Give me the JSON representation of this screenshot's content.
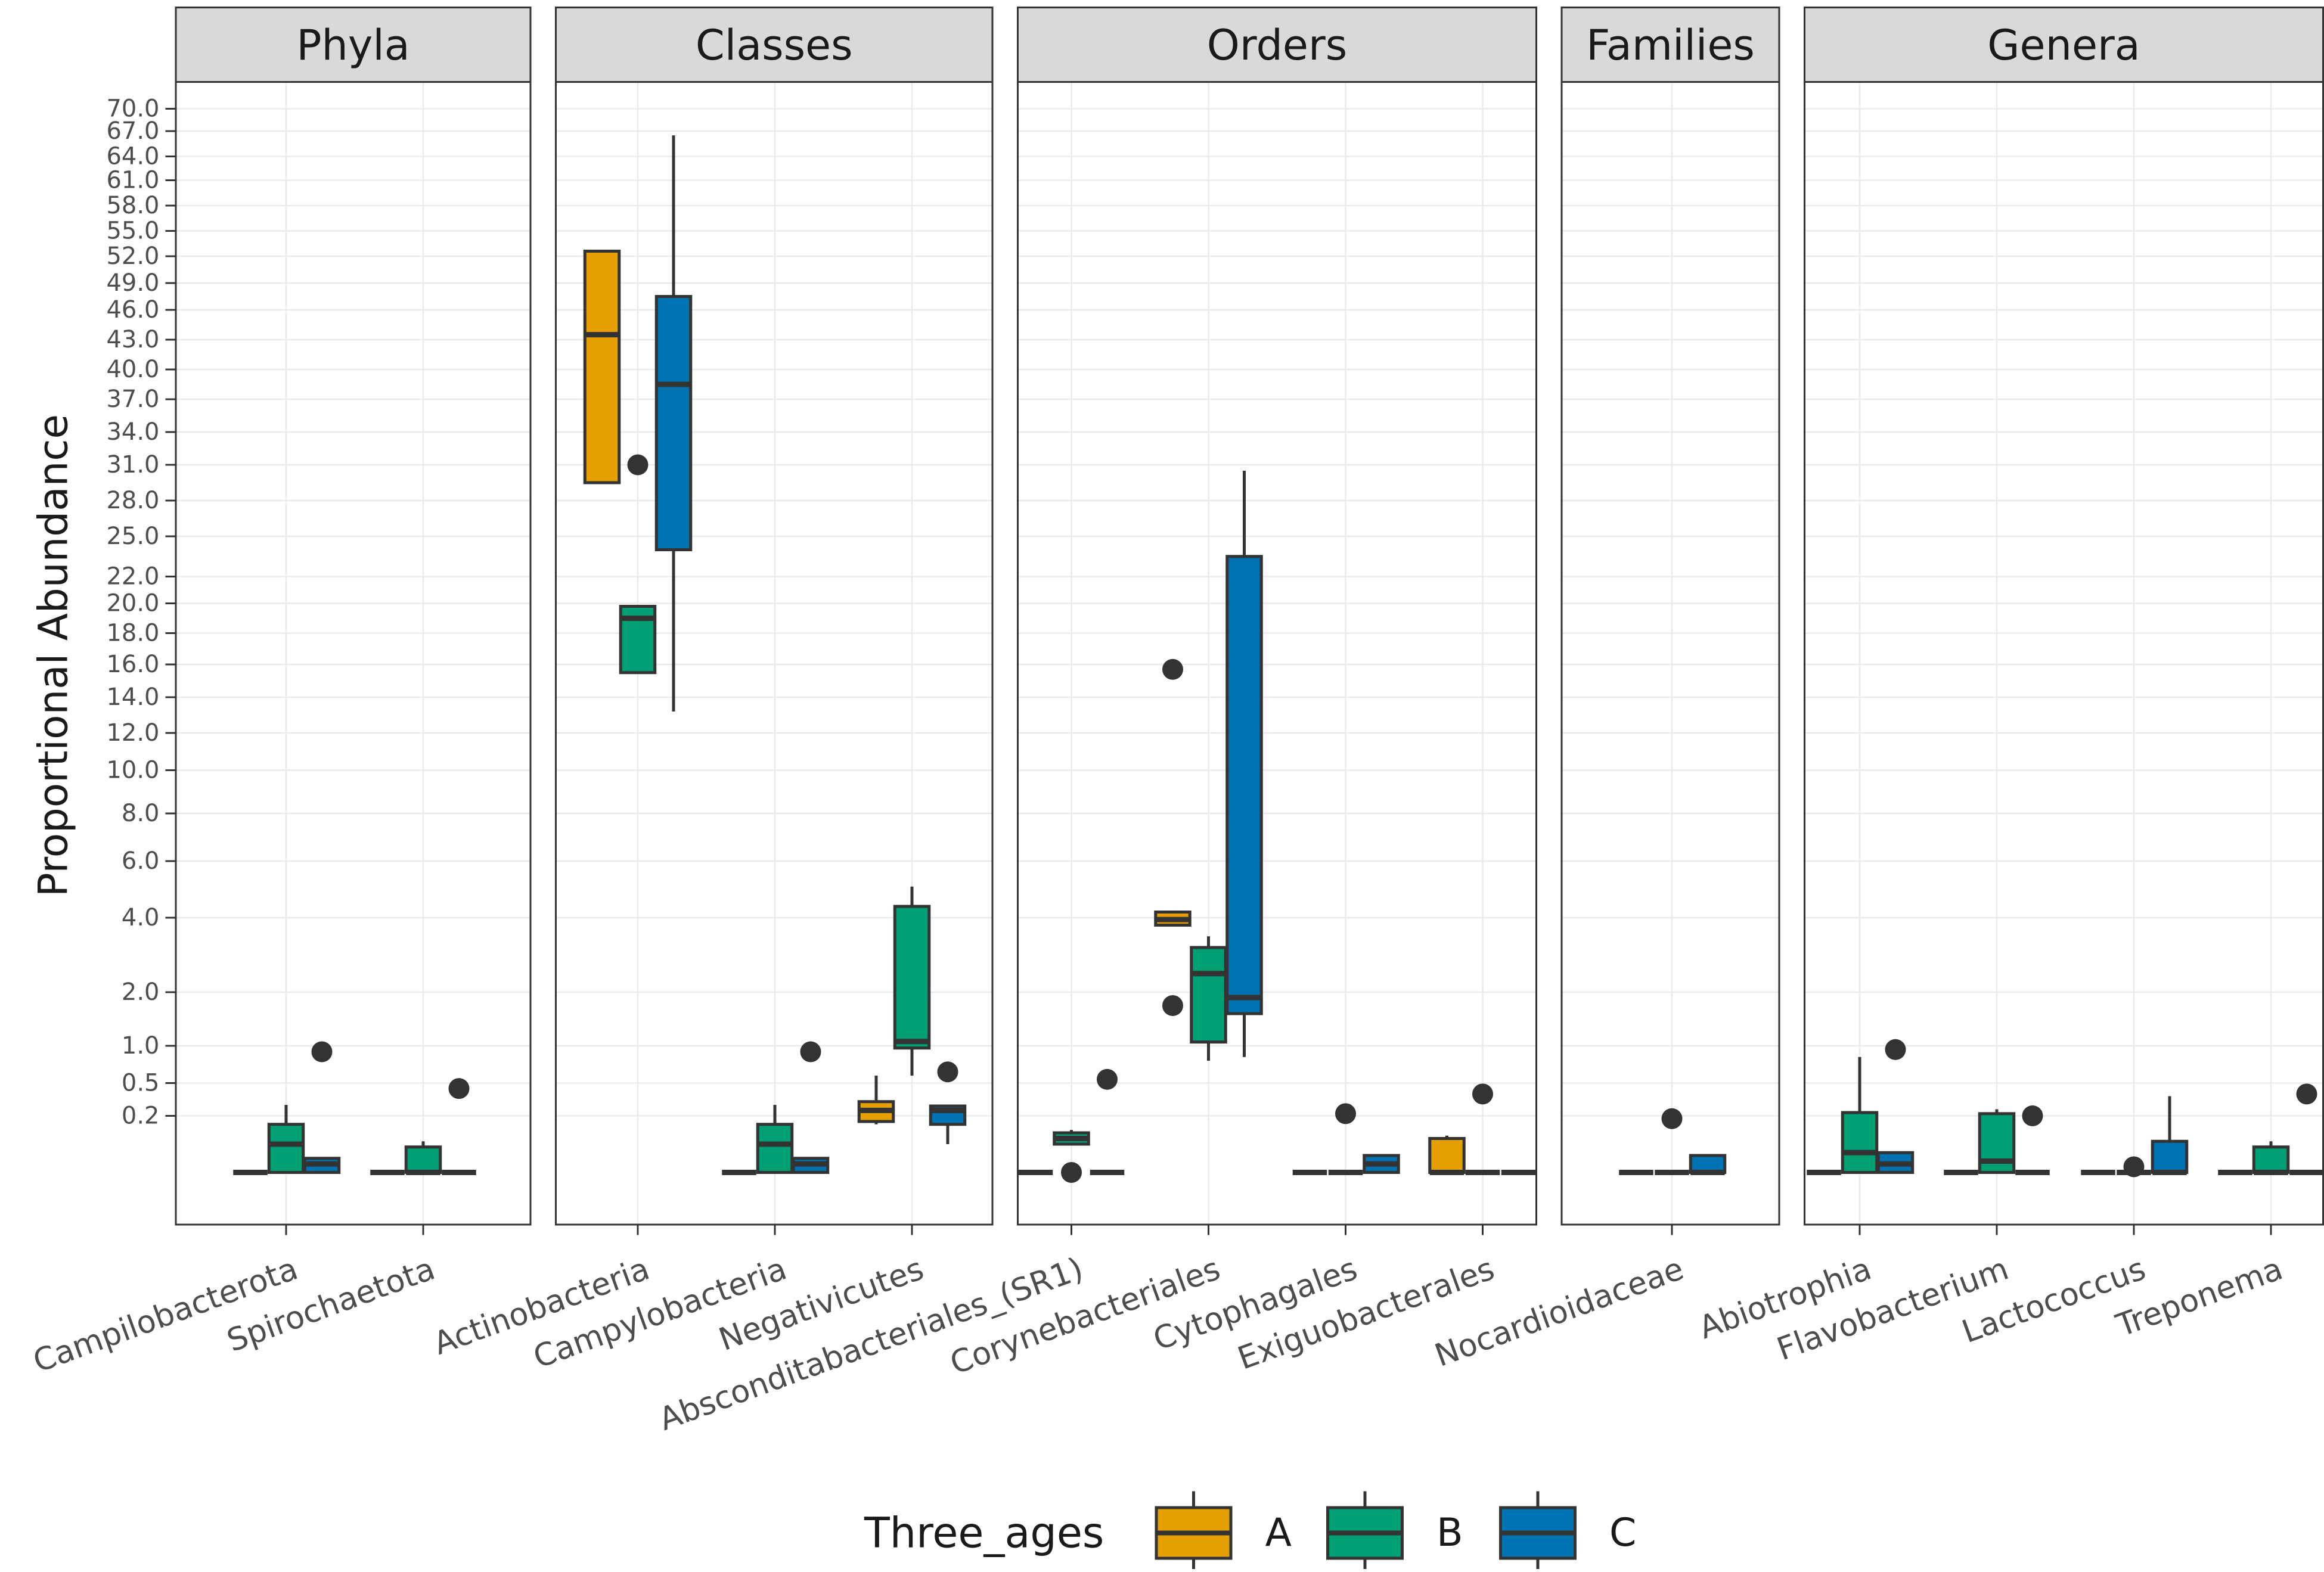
{
  "chart_data": {
    "type": "boxplot",
    "ylabel": "Proportional Abundance",
    "y_ticks": [
      "70.0",
      "67.0",
      "64.0",
      "61.0",
      "58.0",
      "55.0",
      "52.0",
      "49.0",
      "46.0",
      "43.0",
      "40.0",
      "37.0",
      "34.0",
      "31.0",
      "28.0",
      "25.0",
      "22.0",
      "20.0",
      "18.0",
      "16.0",
      "14.0",
      "12.0",
      "10.0",
      "8.0",
      "6.0",
      "4.0",
      "2.0",
      "1.0",
      "0.5",
      "0.2"
    ],
    "legend": {
      "title": "Three_ages",
      "position": "bottom",
      "entries": [
        {
          "label": "A",
          "color": "#E69F00"
        },
        {
          "label": "B",
          "color": "#009E73"
        },
        {
          "label": "C",
          "color": "#0072B2"
        }
      ]
    },
    "panels": [
      {
        "strip": "Phyla",
        "categories": [
          {
            "name": "Campilobacterota",
            "boxes": [
              {
                "group": "A",
                "min": 0,
                "q1": 0,
                "median": 0,
                "q3": 0,
                "max": 0,
                "outliers": []
              },
              {
                "group": "B",
                "min": 0,
                "q1": 0,
                "median": 0.1,
                "q3": 0.17,
                "max": 0.3,
                "outliers": []
              },
              {
                "group": "C",
                "min": 0,
                "q1": 0,
                "median": 0.03,
                "q3": 0.05,
                "max": 0.05,
                "outliers": [
                  0.92
                ]
              }
            ]
          },
          {
            "name": "Spirochaetota",
            "boxes": [
              {
                "group": "A",
                "min": 0,
                "q1": 0,
                "median": 0,
                "q3": 0,
                "max": 0,
                "outliers": []
              },
              {
                "group": "B",
                "min": 0,
                "q1": 0,
                "median": 0,
                "q3": 0.09,
                "max": 0.11,
                "outliers": []
              },
              {
                "group": "C",
                "min": 0,
                "q1": 0,
                "median": 0,
                "q3": 0,
                "max": 0,
                "outliers": [
                  0.45
                ]
              }
            ]
          }
        ]
      },
      {
        "strip": "Classes",
        "categories": [
          {
            "name": "Actinobacteria",
            "boxes": [
              {
                "group": "A",
                "min": 29.5,
                "q1": 29.5,
                "median": 43.5,
                "q3": 52.6,
                "max": 52.6,
                "outliers": []
              },
              {
                "group": "B",
                "min": 15.5,
                "q1": 15.5,
                "median": 19.0,
                "q3": 19.8,
                "max": 19.8,
                "outliers": [
                  31.0
                ]
              },
              {
                "group": "C",
                "min": 13.2,
                "q1": 24.0,
                "median": 38.5,
                "q3": 47.5,
                "max": 66.5,
                "outliers": []
              }
            ]
          },
          {
            "name": "Campylobacteria",
            "boxes": [
              {
                "group": "A",
                "min": 0,
                "q1": 0,
                "median": 0,
                "q3": 0,
                "max": 0,
                "outliers": []
              },
              {
                "group": "B",
                "min": 0,
                "q1": 0,
                "median": 0.1,
                "q3": 0.17,
                "max": 0.3,
                "outliers": []
              },
              {
                "group": "C",
                "min": 0,
                "q1": 0,
                "median": 0.03,
                "q3": 0.05,
                "max": 0.05,
                "outliers": [
                  0.92
                ]
              }
            ]
          },
          {
            "name": "Negativicutes",
            "boxes": [
              {
                "group": "A",
                "min": 0.17,
                "q1": 0.18,
                "median": 0.25,
                "q3": 0.33,
                "max": 0.6,
                "outliers": []
              },
              {
                "group": "B",
                "min": 0.6,
                "q1": 0.97,
                "median": 1.08,
                "q3": 4.4,
                "max": 5.1,
                "outliers": []
              },
              {
                "group": "C",
                "min": 0.1,
                "q1": 0.17,
                "median": 0.25,
                "q3": 0.29,
                "max": 0.29,
                "outliers": [
                  0.65
                ]
              }
            ]
          }
        ]
      },
      {
        "strip": "Orders",
        "categories": [
          {
            "name": "Absconditabacteriales_(SR1)",
            "boxes": [
              {
                "group": "A",
                "min": 0,
                "q1": 0,
                "median": 0,
                "q3": 0,
                "max": 0,
                "outliers": []
              },
              {
                "group": "B",
                "min": 0.1,
                "q1": 0.1,
                "median": 0.12,
                "q3": 0.14,
                "max": 0.15,
                "outliers": [
                  0.0
                ]
              },
              {
                "group": "C",
                "min": 0,
                "q1": 0,
                "median": 0,
                "q3": 0,
                "max": 0,
                "outliers": [
                  0.55
                ]
              }
            ]
          },
          {
            "name": "Corynebacteriales",
            "boxes": [
              {
                "group": "A",
                "min": 3.8,
                "q1": 3.8,
                "median": 3.95,
                "q3": 4.2,
                "max": 4.2,
                "outliers": [
                  15.7,
                  1.75
                ]
              },
              {
                "group": "B",
                "min": 0.8,
                "q1": 1.07,
                "median": 2.5,
                "q3": 3.2,
                "max": 3.5,
                "outliers": []
              },
              {
                "group": "C",
                "min": 0.85,
                "q1": 1.6,
                "median": 1.9,
                "q3": 23.5,
                "max": 30.5,
                "outliers": []
              }
            ]
          },
          {
            "name": "Cytophagales",
            "boxes": [
              {
                "group": "A",
                "min": 0,
                "q1": 0,
                "median": 0,
                "q3": 0,
                "max": 0,
                "outliers": []
              },
              {
                "group": "B",
                "min": 0,
                "q1": 0,
                "median": 0,
                "q3": 0,
                "max": 0,
                "outliers": [
                  0.22
                ]
              },
              {
                "group": "C",
                "min": 0,
                "q1": 0,
                "median": 0.03,
                "q3": 0.06,
                "max": 0.06,
                "outliers": []
              }
            ]
          },
          {
            "name": "Exiguobacterales",
            "boxes": [
              {
                "group": "A",
                "min": 0,
                "q1": 0,
                "median": 0,
                "q3": 0.12,
                "max": 0.13,
                "outliers": []
              },
              {
                "group": "B",
                "min": 0,
                "q1": 0,
                "median": 0,
                "q3": 0,
                "max": 0,
                "outliers": [
                  0.4
                ]
              },
              {
                "group": "C",
                "min": 0,
                "q1": 0,
                "median": 0,
                "q3": 0,
                "max": 0,
                "outliers": []
              }
            ]
          }
        ]
      },
      {
        "strip": "Families",
        "categories": [
          {
            "name": "Nocardioidaceae",
            "boxes": [
              {
                "group": "A",
                "min": 0,
                "q1": 0,
                "median": 0,
                "q3": 0,
                "max": 0,
                "outliers": []
              },
              {
                "group": "B",
                "min": 0,
                "q1": 0,
                "median": 0,
                "q3": 0,
                "max": 0,
                "outliers": [
                  0.19
                ]
              },
              {
                "group": "C",
                "min": 0,
                "q1": 0,
                "median": 0,
                "q3": 0.06,
                "max": 0.06,
                "outliers": []
              }
            ]
          }
        ]
      },
      {
        "strip": "Genera",
        "categories": [
          {
            "name": "Abiotrophia",
            "boxes": [
              {
                "group": "A",
                "min": 0,
                "q1": 0,
                "median": 0,
                "q3": 0,
                "max": 0,
                "outliers": []
              },
              {
                "group": "B",
                "min": 0,
                "q1": 0,
                "median": 0.07,
                "q3": 0.23,
                "max": 0.85,
                "outliers": []
              },
              {
                "group": "C",
                "min": 0,
                "q1": 0,
                "median": 0.03,
                "q3": 0.07,
                "max": 0.07,
                "outliers": [
                  0.95
                ]
              }
            ]
          },
          {
            "name": "Flavobacterium",
            "boxes": [
              {
                "group": "A",
                "min": 0,
                "q1": 0,
                "median": 0,
                "q3": 0,
                "max": 0,
                "outliers": []
              },
              {
                "group": "B",
                "min": 0,
                "q1": 0,
                "median": 0.04,
                "q3": 0.22,
                "max": 0.26,
                "outliers": []
              },
              {
                "group": "C",
                "min": 0,
                "q1": 0,
                "median": 0,
                "q3": 0,
                "max": 0,
                "outliers": [
                  0.2
                ]
              }
            ]
          },
          {
            "name": "Lactococcus",
            "boxes": [
              {
                "group": "A",
                "min": 0,
                "q1": 0,
                "median": 0,
                "q3": 0,
                "max": 0,
                "outliers": []
              },
              {
                "group": "B",
                "min": 0,
                "q1": 0,
                "median": 0,
                "q3": 0,
                "max": 0,
                "outliers": [
                  0.02
                ]
              },
              {
                "group": "C",
                "min": 0,
                "q1": 0,
                "median": 0,
                "q3": 0.11,
                "max": 0.38,
                "outliers": []
              }
            ]
          },
          {
            "name": "Treponema",
            "boxes": [
              {
                "group": "A",
                "min": 0,
                "q1": 0,
                "median": 0,
                "q3": 0,
                "max": 0,
                "outliers": []
              },
              {
                "group": "B",
                "min": 0,
                "q1": 0,
                "median": 0,
                "q3": 0.09,
                "max": 0.11,
                "outliers": []
              },
              {
                "group": "C",
                "min": 0,
                "q1": 0,
                "median": 0,
                "q3": 0,
                "max": 0,
                "outliers": [
                  0.4
                ]
              }
            ]
          }
        ]
      }
    ]
  }
}
